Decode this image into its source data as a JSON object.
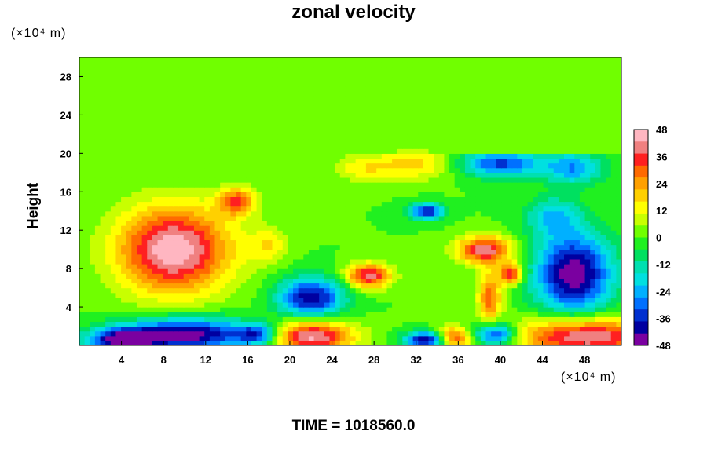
{
  "title": "zonal velocity",
  "y_unit": "(×10⁴ m)",
  "x_unit": "(×10⁴ m)",
  "ylabel": "Height",
  "time_label": "TIME = 1018560.0",
  "chart_data": {
    "type": "heatmap",
    "title": "zonal velocity",
    "xlabel": "",
    "ylabel": "Height",
    "x_unit": "(×10⁴ m)",
    "y_unit": "(×10⁴ m)",
    "xlim": [
      0,
      51.5
    ],
    "ylim": [
      0,
      30
    ],
    "x_ticks": [
      4,
      8,
      12,
      16,
      20,
      24,
      28,
      32,
      36,
      40,
      44,
      48
    ],
    "y_ticks": [
      4,
      8,
      12,
      16,
      20,
      24,
      28
    ],
    "colorbar": {
      "range": [
        -48,
        48
      ],
      "ticks": [
        48,
        36,
        24,
        12,
        0,
        -12,
        -24,
        -36,
        -48
      ],
      "colors": [
        "#ffb6c1",
        "#f08080",
        "#ff2020",
        "#ff6a00",
        "#ffa000",
        "#ffd000",
        "#ffff00",
        "#c8ff00",
        "#70ff00",
        "#20f020",
        "#00e060",
        "#00e0b0",
        "#00e0e0",
        "#00b0ff",
        "#0070ff",
        "#0030d0",
        "#0000a0",
        "#7a00a0"
      ]
    },
    "background_value": 0,
    "features": [
      {
        "x": 9,
        "y": 10,
        "sx": 3.8,
        "sy": 3.2,
        "value": 48
      },
      {
        "x": 15,
        "y": 15,
        "sx": 1.2,
        "sy": 1.0,
        "value": 32
      },
      {
        "x": 27.5,
        "y": 7.3,
        "sx": 1.5,
        "sy": 0.9,
        "value": 40
      },
      {
        "x": 38.5,
        "y": 10,
        "sx": 1.8,
        "sy": 1.0,
        "value": 42
      },
      {
        "x": 41,
        "y": 7.5,
        "sx": 0.8,
        "sy": 0.8,
        "value": 36
      },
      {
        "x": 39,
        "y": 5,
        "sx": 0.8,
        "sy": 2.0,
        "value": 30
      },
      {
        "x": 22,
        "y": 1,
        "sx": 2.8,
        "sy": 1.2,
        "value": 46
      },
      {
        "x": 48,
        "y": 1,
        "sx": 4.5,
        "sy": 1.4,
        "value": 46
      },
      {
        "x": 35.5,
        "y": 0.8,
        "sx": 1.2,
        "sy": 0.8,
        "value": 36
      },
      {
        "x": 32,
        "y": 19,
        "sx": 2.5,
        "sy": 1.2,
        "value": 18
      },
      {
        "x": 27,
        "y": 18.5,
        "sx": 2.0,
        "sy": 1.0,
        "value": 14
      },
      {
        "x": 10,
        "y": 1.2,
        "sx": 4.5,
        "sy": 1.2,
        "value": -48
      },
      {
        "x": 4,
        "y": 0.6,
        "sx": 2.2,
        "sy": 0.8,
        "value": -40
      },
      {
        "x": 22,
        "y": 5,
        "sx": 2.2,
        "sy": 1.5,
        "value": -42
      },
      {
        "x": 47,
        "y": 7.5,
        "sx": 2.6,
        "sy": 3.0,
        "value": -48
      },
      {
        "x": 40,
        "y": 19,
        "sx": 2.8,
        "sy": 1.0,
        "value": -34
      },
      {
        "x": 47,
        "y": 18.5,
        "sx": 2.0,
        "sy": 1.2,
        "value": -26
      },
      {
        "x": 33,
        "y": 14,
        "sx": 1.2,
        "sy": 0.6,
        "value": -38
      },
      {
        "x": 39.5,
        "y": 1.2,
        "sx": 1.4,
        "sy": 0.9,
        "value": -40
      },
      {
        "x": 33,
        "y": 0.6,
        "sx": 1.5,
        "sy": 0.6,
        "value": -46
      },
      {
        "x": 17,
        "y": 1.2,
        "sx": 1.4,
        "sy": 0.8,
        "value": -30
      },
      {
        "x": 18,
        "y": 10.5,
        "sx": 1.3,
        "sy": 1.3,
        "value": 14
      },
      {
        "x": 45,
        "y": 13.5,
        "sx": 1.8,
        "sy": 1.4,
        "value": -20
      }
    ]
  }
}
